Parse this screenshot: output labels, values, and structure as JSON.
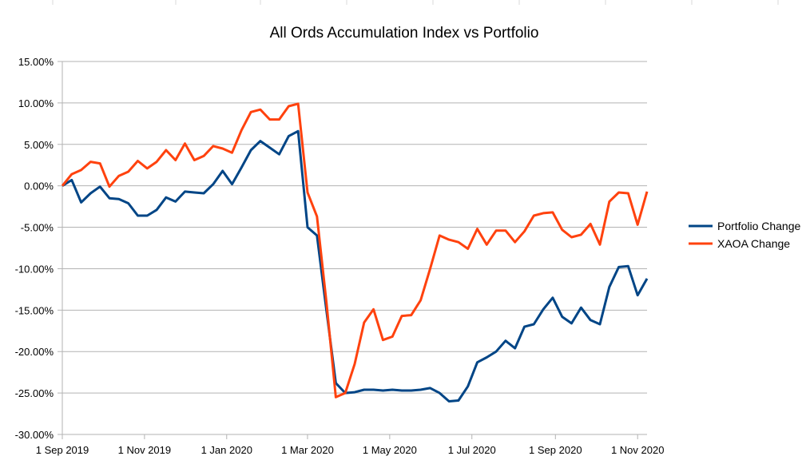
{
  "chart_data": {
    "type": "line",
    "title": "All Ords Accumulation Index vs Portfolio",
    "xlabel": "",
    "ylabel": "",
    "ylim": [
      -0.3,
      0.15
    ],
    "yticks": [
      -0.3,
      -0.25,
      -0.2,
      -0.15,
      -0.1,
      -0.05,
      0.0,
      0.05,
      0.1,
      0.15
    ],
    "ytick_labels": [
      "-30.00%",
      "-25.00%",
      "-20.00%",
      "-15.00%",
      "-10.00%",
      "-5.00%",
      "0.00%",
      "5.00%",
      "10.00%",
      "15.00%"
    ],
    "xlim": [
      "2019-09-01",
      "2020-11-08"
    ],
    "xticks": [
      "2019-09-01",
      "2019-11-01",
      "2020-01-01",
      "2020-03-01",
      "2020-05-01",
      "2020-07-01",
      "2020-09-01",
      "2020-11-01"
    ],
    "xtick_labels": [
      "1 Sep 2019",
      "1 Nov 2019",
      "1 Jan 2020",
      "1 Mar 2020",
      "1 May 2020",
      "1 Jul 2020",
      "1 Sep 2020",
      "1 Nov 2020"
    ],
    "grid": true,
    "legend_position": "right",
    "x": [
      "2019-09-01",
      "2019-09-08",
      "2019-09-15",
      "2019-09-22",
      "2019-09-29",
      "2019-10-06",
      "2019-10-13",
      "2019-10-20",
      "2019-10-27",
      "2019-11-03",
      "2019-11-10",
      "2019-11-17",
      "2019-11-24",
      "2019-12-01",
      "2019-12-08",
      "2019-12-15",
      "2019-12-22",
      "2019-12-29",
      "2020-01-05",
      "2020-01-12",
      "2020-01-19",
      "2020-01-26",
      "2020-02-02",
      "2020-02-09",
      "2020-02-16",
      "2020-02-23",
      "2020-03-01",
      "2020-03-08",
      "2020-03-15",
      "2020-03-22",
      "2020-03-29",
      "2020-04-05",
      "2020-04-12",
      "2020-04-19",
      "2020-04-26",
      "2020-05-03",
      "2020-05-10",
      "2020-05-17",
      "2020-05-24",
      "2020-05-31",
      "2020-06-07",
      "2020-06-14",
      "2020-06-21",
      "2020-06-28",
      "2020-07-05",
      "2020-07-12",
      "2020-07-19",
      "2020-07-26",
      "2020-08-02",
      "2020-08-09",
      "2020-08-16",
      "2020-08-23",
      "2020-08-30",
      "2020-09-06",
      "2020-09-13",
      "2020-09-20",
      "2020-09-27",
      "2020-10-04",
      "2020-10-11",
      "2020-10-18",
      "2020-10-25",
      "2020-11-01",
      "2020-11-08"
    ],
    "series": [
      {
        "name": "Portfolio Change",
        "color": "#004586",
        "values": [
          0.0,
          0.007,
          -0.02,
          -0.009,
          -0.001,
          -0.015,
          -0.016,
          -0.021,
          -0.036,
          -0.036,
          -0.029,
          -0.014,
          -0.019,
          -0.007,
          -0.008,
          -0.009,
          0.002,
          0.018,
          0.002,
          0.022,
          0.043,
          0.054,
          0.046,
          0.038,
          0.06,
          0.066,
          -0.05,
          -0.06,
          -0.15,
          -0.238,
          -0.25,
          -0.249,
          -0.246,
          -0.246,
          -0.247,
          -0.246,
          -0.247,
          -0.247,
          -0.246,
          -0.244,
          -0.25,
          -0.26,
          -0.259,
          -0.242,
          -0.213,
          -0.207,
          -0.2,
          -0.187,
          -0.196,
          -0.17,
          -0.167,
          -0.149,
          -0.135,
          -0.158,
          -0.166,
          -0.147,
          -0.162,
          -0.167,
          -0.122,
          -0.098,
          -0.097,
          -0.132,
          -0.112
        ]
      },
      {
        "name": "XAOA Change",
        "color": "#ff420e",
        "values": [
          0.0,
          0.014,
          0.019,
          0.029,
          0.027,
          -0.001,
          0.012,
          0.017,
          0.03,
          0.021,
          0.029,
          0.043,
          0.031,
          0.051,
          0.031,
          0.036,
          0.048,
          0.045,
          0.04,
          0.067,
          0.089,
          0.092,
          0.08,
          0.08,
          0.096,
          0.099,
          -0.008,
          -0.037,
          -0.14,
          -0.255,
          -0.25,
          -0.215,
          -0.165,
          -0.149,
          -0.186,
          -0.182,
          -0.157,
          -0.156,
          -0.138,
          -0.1,
          -0.06,
          -0.065,
          -0.068,
          -0.076,
          -0.052,
          -0.071,
          -0.054,
          -0.054,
          -0.068,
          -0.055,
          -0.036,
          -0.033,
          -0.032,
          -0.053,
          -0.062,
          -0.059,
          -0.046,
          -0.071,
          -0.019,
          -0.008,
          -0.009,
          -0.047,
          -0.007
        ]
      }
    ]
  }
}
